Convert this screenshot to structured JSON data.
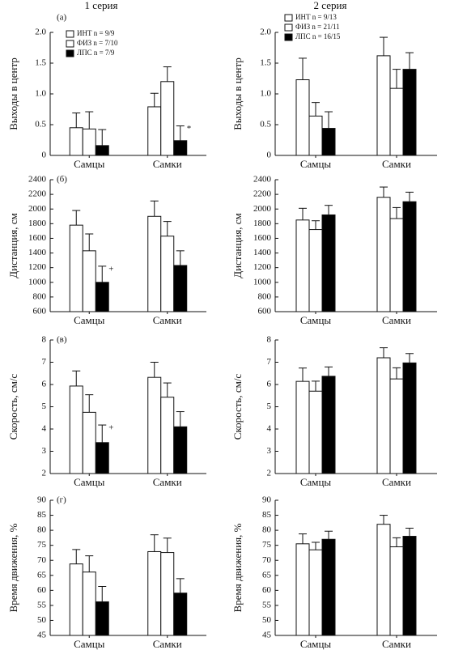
{
  "column_titles": [
    "1 серия",
    "2 серия"
  ],
  "chart_data": [
    {
      "type": "bar",
      "panel_label": "(а)",
      "ylabel": "Выходы в центр",
      "categories": [
        "Самцы",
        "Самки"
      ],
      "ylim": [
        0,
        2
      ],
      "yticks": [
        0,
        {
          "value": 0.5,
          "label": "0.5"
        },
        {
          "value": 1,
          "label": "1.0"
        },
        {
          "value": 1.5,
          "label": "1.5"
        },
        {
          "value": 2,
          "label": "2.0"
        }
      ],
      "legend": "top-left",
      "series": [
        {
          "name": "ИНТ n = 9/9",
          "color": "#ffffff",
          "values": [
            0.45,
            0.79
          ],
          "errors": [
            0.24,
            0.22
          ]
        },
        {
          "name": "ФИЗ n = 7/10",
          "color": "#ffffff",
          "values": [
            0.43,
            1.2
          ],
          "errors": [
            0.28,
            0.24
          ]
        },
        {
          "name": "ЛПС n = 7/9",
          "color": "#000000",
          "values": [
            0.16,
            0.24
          ],
          "errors": [
            0.26,
            0.24
          ],
          "significance": [
            null,
            "*"
          ]
        }
      ]
    },
    {
      "type": "bar",
      "ylabel": "Выходы в центр",
      "categories": [
        "Самцы",
        "Самки"
      ],
      "ylim": [
        0,
        2
      ],
      "yticks": [
        0,
        {
          "value": 0.5,
          "label": "0.5"
        },
        {
          "value": 1,
          "label": "1.0"
        },
        {
          "value": 1.5,
          "label": "1.5"
        },
        {
          "value": 2,
          "label": "2.0"
        }
      ],
      "legend": "top-left",
      "series": [
        {
          "name": "ИНТ n = 9/13",
          "color": "#ffffff",
          "values": [
            1.23,
            1.62
          ],
          "errors": [
            0.35,
            0.3
          ]
        },
        {
          "name": "ФИЗ n = 21/11",
          "color": "#ffffff",
          "values": [
            0.64,
            1.09
          ],
          "errors": [
            0.22,
            0.31
          ]
        },
        {
          "name": "ЛПС n = 16/15",
          "color": "#000000",
          "values": [
            0.44,
            1.4
          ],
          "errors": [
            0.27,
            0.27
          ]
        }
      ]
    },
    {
      "type": "bar",
      "panel_label": "(б)",
      "ylabel": "Дистанция, см",
      "categories": [
        "Самцы",
        "Самки"
      ],
      "ylim": [
        600,
        2400
      ],
      "yticks": [
        600,
        800,
        1000,
        1200,
        1400,
        1600,
        1800,
        2000,
        2200,
        2400
      ],
      "series": [
        {
          "color": "#ffffff",
          "values": [
            1780,
            1900
          ],
          "errors": [
            200,
            210
          ]
        },
        {
          "color": "#ffffff",
          "values": [
            1430,
            1630
          ],
          "errors": [
            230,
            200
          ]
        },
        {
          "color": "#000000",
          "values": [
            1000,
            1230
          ],
          "errors": [
            220,
            200
          ],
          "significance": [
            "+",
            null
          ]
        }
      ]
    },
    {
      "type": "bar",
      "ylabel": "Дистанция, см",
      "categories": [
        "Самцы",
        "Самки"
      ],
      "ylim": [
        600,
        2400
      ],
      "yticks": [
        600,
        800,
        1000,
        1200,
        1400,
        1600,
        1800,
        2000,
        2200,
        2400
      ],
      "series": [
        {
          "color": "#ffffff",
          "values": [
            1850,
            2160
          ],
          "errors": [
            160,
            140
          ]
        },
        {
          "color": "#ffffff",
          "values": [
            1720,
            1870
          ],
          "errors": [
            120,
            150
          ]
        },
        {
          "color": "#000000",
          "values": [
            1920,
            2100
          ],
          "errors": [
            130,
            130
          ]
        }
      ]
    },
    {
      "type": "bar",
      "panel_label": "(в)",
      "ylabel": "Скорость, см/с",
      "categories": [
        "Самцы",
        "Самки"
      ],
      "ylim": [
        2,
        8
      ],
      "yticks": [
        2,
        3,
        4,
        5,
        6,
        7,
        8
      ],
      "series": [
        {
          "color": "#ffffff",
          "values": [
            5.93,
            6.32
          ],
          "errors": [
            0.68,
            0.68
          ]
        },
        {
          "color": "#ffffff",
          "values": [
            4.75,
            5.43
          ],
          "errors": [
            0.79,
            0.64
          ]
        },
        {
          "color": "#000000",
          "values": [
            3.39,
            4.1
          ],
          "errors": [
            0.79,
            0.68
          ],
          "significance": [
            "+",
            null
          ]
        }
      ]
    },
    {
      "type": "bar",
      "ylabel": "Скорость, см/с",
      "categories": [
        "Самцы",
        "Самки"
      ],
      "ylim": [
        2,
        8
      ],
      "yticks": [
        2,
        3,
        4,
        5,
        6,
        7,
        8
      ],
      "series": [
        {
          "color": "#ffffff",
          "values": [
            6.14,
            7.2
          ],
          "errors": [
            0.6,
            0.45
          ]
        },
        {
          "color": "#ffffff",
          "values": [
            5.7,
            6.25
          ],
          "errors": [
            0.45,
            0.5
          ]
        },
        {
          "color": "#000000",
          "values": [
            6.37,
            6.97
          ],
          "errors": [
            0.42,
            0.42
          ]
        }
      ]
    },
    {
      "type": "bar",
      "panel_label": "(г)",
      "ylabel": "Время движения, %",
      "categories": [
        "Самцы",
        "Самки"
      ],
      "ylim": [
        45,
        90
      ],
      "yticks": [
        45,
        50,
        55,
        60,
        65,
        70,
        75,
        80,
        85,
        90
      ],
      "series": [
        {
          "color": "#ffffff",
          "values": [
            68.8,
            72.9
          ],
          "errors": [
            4.8,
            5.6
          ]
        },
        {
          "color": "#ffffff",
          "values": [
            66.1,
            72.6
          ],
          "errors": [
            5.4,
            4.8
          ]
        },
        {
          "color": "#000000",
          "values": [
            56.2,
            59.1
          ],
          "errors": [
            5.1,
            4.8
          ]
        }
      ]
    },
    {
      "type": "bar",
      "ylabel": "Время движения, %",
      "categories": [
        "Самцы",
        "Самки"
      ],
      "ylim": [
        45,
        90
      ],
      "yticks": [
        45,
        50,
        55,
        60,
        65,
        70,
        75,
        80,
        85,
        90
      ],
      "series": [
        {
          "color": "#ffffff",
          "values": [
            75.5,
            82
          ],
          "errors": [
            3.3,
            3
          ]
        },
        {
          "color": "#ffffff",
          "values": [
            73.5,
            74.5
          ],
          "errors": [
            2.5,
            3
          ]
        },
        {
          "color": "#000000",
          "values": [
            77,
            78
          ],
          "errors": [
            2.7,
            2.7
          ]
        }
      ]
    }
  ]
}
